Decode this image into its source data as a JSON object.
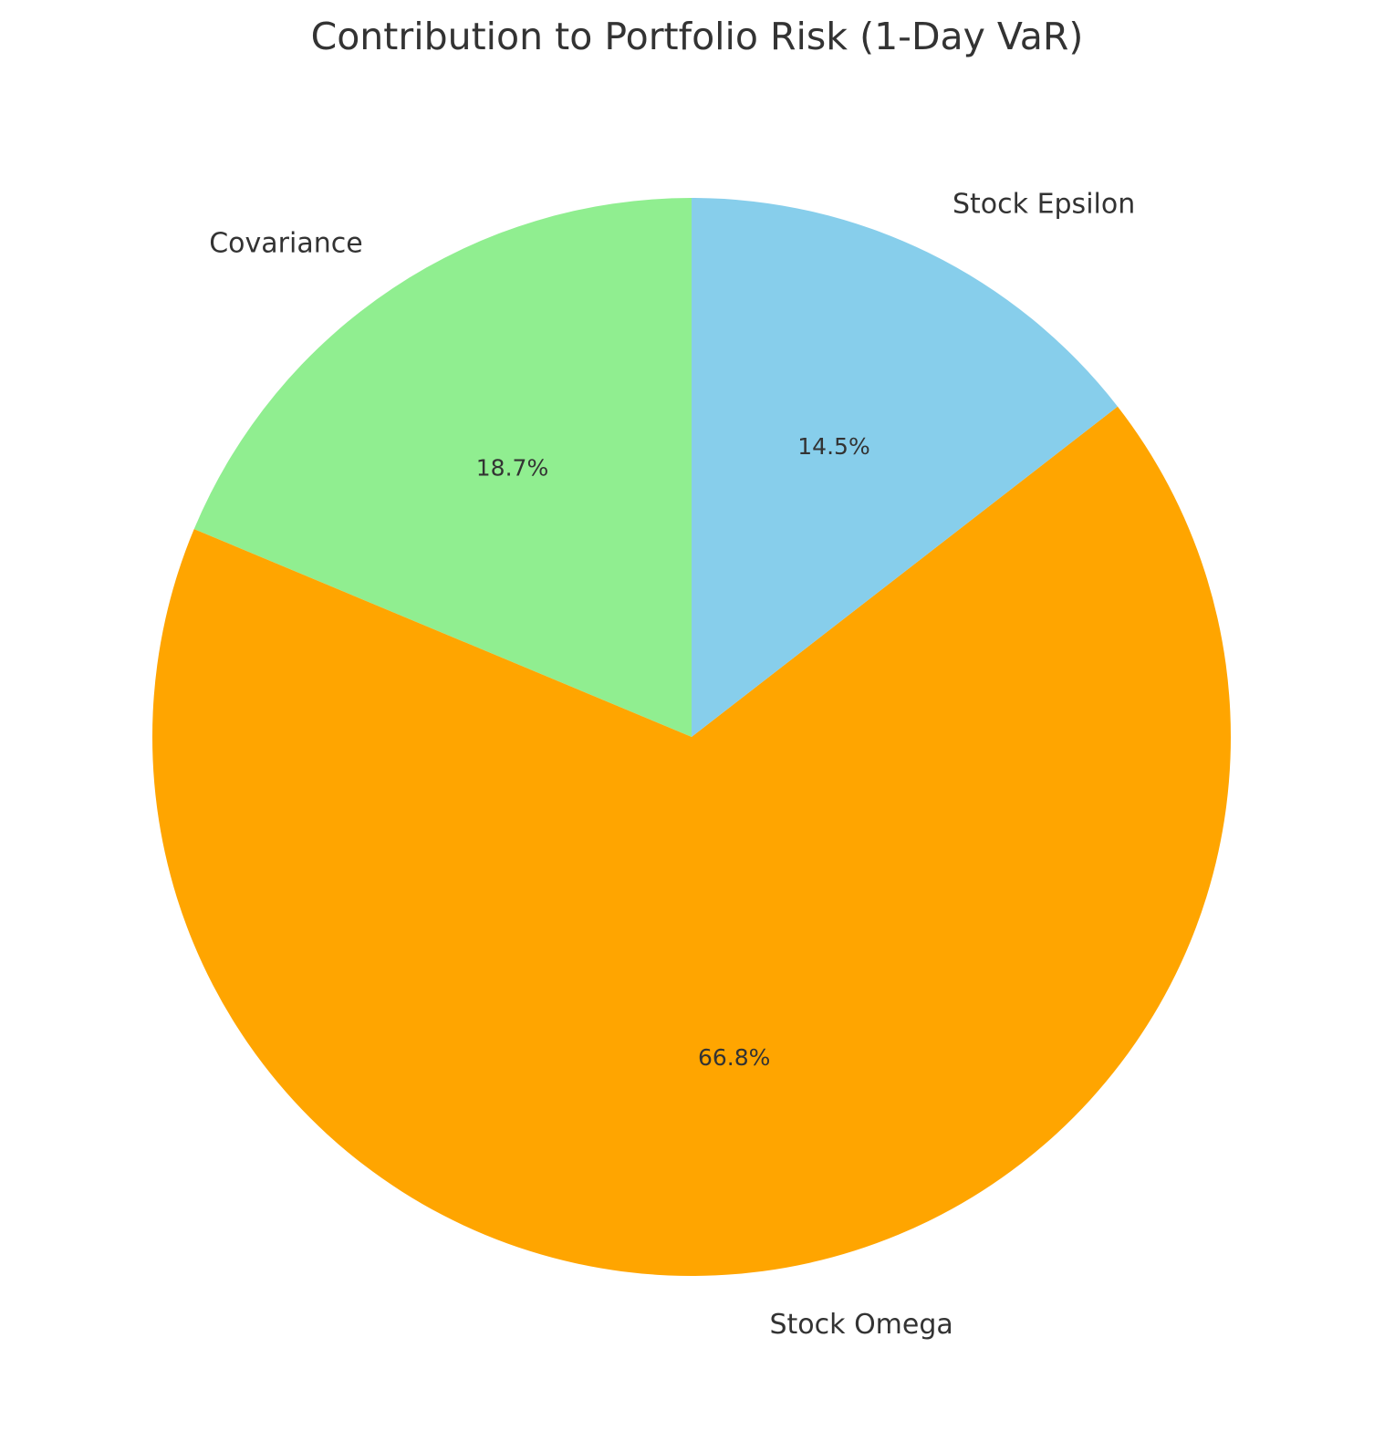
{
  "chart_data": {
    "type": "pie",
    "title": "Contribution to Portfolio Risk (1-Day VaR)",
    "start_angle_deg": 90,
    "direction": "counterclockwise",
    "slices": [
      {
        "label": "Covariance",
        "value": 18.7,
        "pct_label": "18.7%",
        "color": "#90EE90"
      },
      {
        "label": "Stock Omega",
        "value": 66.8,
        "pct_label": "66.8%",
        "color": "#FFA500"
      },
      {
        "label": "Stock Epsilon",
        "value": 14.5,
        "pct_label": "14.5%",
        "color": "#87CEEB"
      }
    ]
  }
}
